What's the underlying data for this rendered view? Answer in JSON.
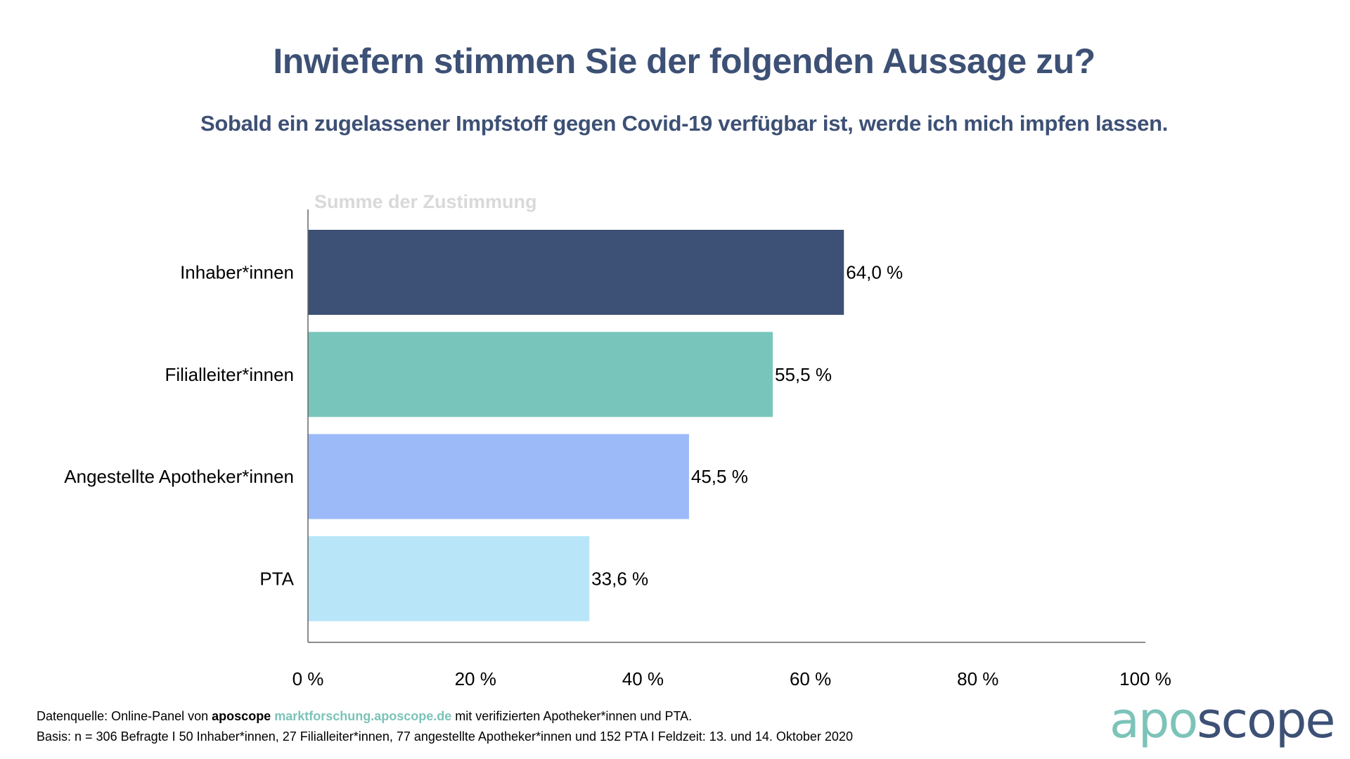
{
  "header": {
    "title": "Inwiefern stimmen Sie der folgenden Aussage zu?",
    "subtitle": "Sobald ein zugelassener Impfstoff gegen Covid-19 verfügbar ist, werde ich mich impfen lassen."
  },
  "chart_data": {
    "type": "bar",
    "orientation": "horizontal",
    "title": "Inwiefern stimmen Sie der folgenden Aussage zu?",
    "subtitle": "Sobald ein zugelassener Impfstoff gegen Covid-19 verfügbar ist, werde ich mich impfen lassen.",
    "series_label": "Summe der Zustimmung",
    "categories": [
      "Inhaber*innen",
      "Filialleiter*innen",
      "Angestellte Apotheker*innen",
      "PTA"
    ],
    "values": [
      64.0,
      55.5,
      45.5,
      33.6
    ],
    "value_labels": [
      "64,0 %",
      "55,5 %",
      "45,5 %",
      "33,6 %"
    ],
    "colors": [
      "#3d5075",
      "#78c6bb",
      "#9dbaf8",
      "#b8e6f8"
    ],
    "xlabel": "",
    "ylabel": "",
    "xlim": [
      0,
      100
    ],
    "xticks": [
      0,
      20,
      40,
      60,
      80,
      100
    ],
    "xtick_labels": [
      "0 %",
      "20 %",
      "40 %",
      "60 %",
      "80 %",
      "100 %"
    ],
    "grid": false,
    "legend": "none"
  },
  "footer": {
    "line1_prefix": "Datenquelle: Online-Panel von ",
    "line1_brand": "aposcope",
    "line1_link": "marktforschung.aposcope.de",
    "line1_suffix": " mit verifizierten Apotheker*innen und PTA.",
    "line2": "Basis: n = 306 Befragte I 50 Inhaber*innen, 27 Filialleiter*innen, 77 angestellte Apotheker*innen und 152 PTA I Feldzeit: 13. und 14. Oktober 2020"
  },
  "logo": {
    "part1": "apo",
    "part2": "scope",
    "colors": {
      "part1": "#7cc3b9",
      "part2": "#3d5075"
    }
  },
  "colors": {
    "title": "#3d5075",
    "series_label": "#d9d9d9",
    "axis": "#666666"
  }
}
